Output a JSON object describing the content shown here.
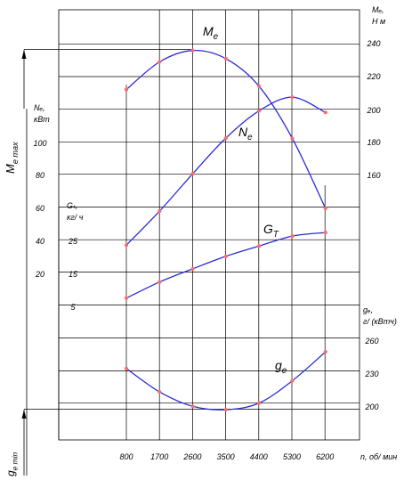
{
  "chart_data": {
    "type": "line",
    "x_label": "n, об/ мин",
    "x": [
      800,
      1700,
      2600,
      3500,
      4400,
      5300,
      6200
    ],
    "x_ticks": [
      "800",
      "1700",
      "2600",
      "3500",
      "4400",
      "5300",
      "6200"
    ],
    "grid": true,
    "axes": {
      "Me": {
        "label_1": "Mₑ,",
        "label_2": "Н м",
        "ticks": [
          "240",
          "220",
          "200",
          "180",
          "160"
        ],
        "range": [
          140,
          250
        ]
      },
      "Ne": {
        "label_1": "Nₑ,",
        "label_2": "кВт",
        "ticks": [
          "100",
          "80",
          "60",
          "40",
          "20"
        ],
        "range": [
          0,
          112
        ]
      },
      "Gt": {
        "label_1": "Gₜ,",
        "label_2": "кг/ ч",
        "ticks": [
          "25",
          "15",
          "5"
        ],
        "range": [
          0,
          36
        ]
      },
      "ge": {
        "label_1": "gₑ,",
        "label_2": "г/ (кВтч)",
        "ticks": [
          "260",
          "230",
          "200"
        ],
        "range": [
          170,
          290
        ]
      }
    },
    "series": [
      {
        "key": "Me",
        "name_main": "M",
        "name_sub": "e",
        "values": [
          212,
          229,
          236,
          231,
          214,
          182,
          139
        ]
      },
      {
        "key": "Ne",
        "name_main": "N",
        "name_sub": "e",
        "values": [
          20,
          40,
          62,
          83,
          99,
          107,
          98
        ]
      },
      {
        "key": "Gt",
        "name_main": "G",
        "name_sub": "T",
        "values": [
          4.8,
          9.8,
          13.9,
          17.8,
          21.0,
          24.1,
          25.2
        ]
      },
      {
        "key": "ge",
        "name_main": "g",
        "name_sub": "e",
        "values": [
          236,
          215,
          202,
          199,
          205,
          225,
          251
        ]
      }
    ],
    "annotations": {
      "me_max_main": "M",
      "me_max_sub": "e max",
      "me_max_value": 236,
      "ge_min_main": "g",
      "ge_min_sub": "e min",
      "ge_min_value": 199
    },
    "colors": {
      "line": "#2b2bd6",
      "marker": "#ff6b6b",
      "grid": "#000000"
    }
  }
}
